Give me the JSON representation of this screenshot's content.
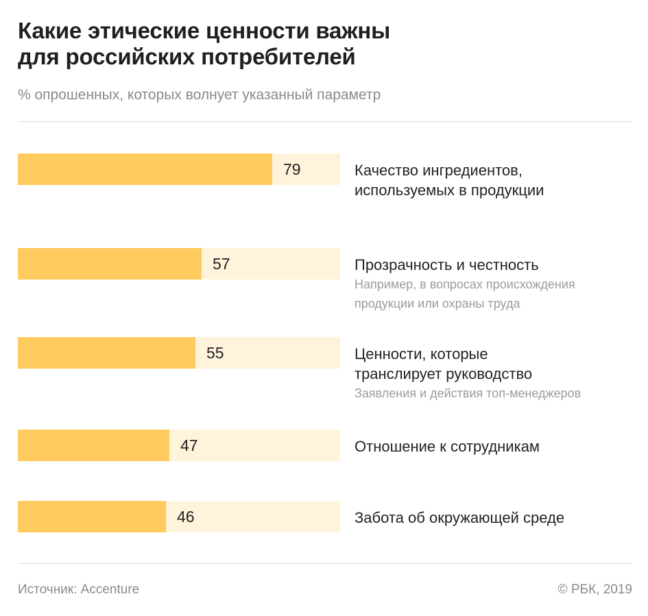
{
  "header": {
    "title_lines": [
      "Какие этические ценности важны",
      "для российских потребителей"
    ],
    "subtitle": "% опрошенных, которых волнует указанный параметр"
  },
  "footer": {
    "source": "Источник: Accenture",
    "copyright": "© РБК, 2019"
  },
  "colors": {
    "bar_fill": "#ffca5e",
    "bar_track": "#fff3dc",
    "text": "#222222",
    "muted": "#8a8a8a"
  },
  "chart_data": {
    "type": "bar",
    "orientation": "horizontal",
    "title": "Какие этические ценности важны для российских потребителей",
    "subtitle": "% опрошенных, которых волнует указанный параметр",
    "xlim": [
      0,
      100
    ],
    "grid": false,
    "legend": "none",
    "categories": [
      {
        "label_lines": [
          "Качество ингредиентов,",
          "используемых в продукции"
        ],
        "note_lines": [],
        "value": 79
      },
      {
        "label_lines": [
          "Прозрачность и честность"
        ],
        "note_lines": [
          "Например, в вопросах происхождения",
          "продукции или охраны труда"
        ],
        "value": 57
      },
      {
        "label_lines": [
          "Ценности, которые",
          "транслирует руководство"
        ],
        "note_lines": [
          "Заявления и действия топ-менеджеров"
        ],
        "value": 55
      },
      {
        "label_lines": [
          "Отношение к сотрудникам"
        ],
        "note_lines": [],
        "value": 47
      },
      {
        "label_lines": [
          "Забота об окружающей среде"
        ],
        "note_lines": [],
        "value": 46
      }
    ],
    "values": [
      79,
      57,
      55,
      47,
      46
    ]
  }
}
